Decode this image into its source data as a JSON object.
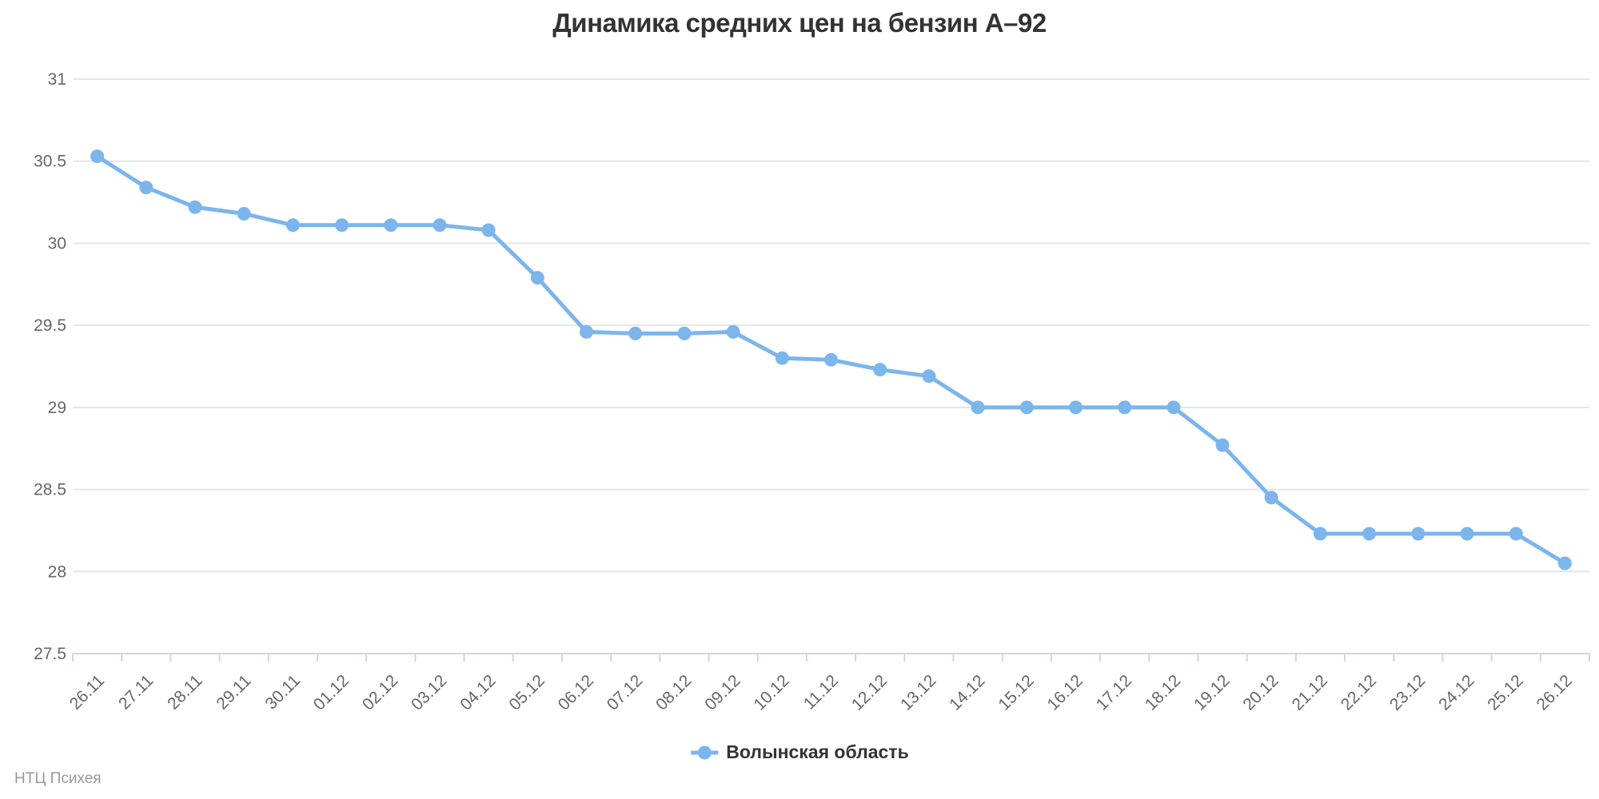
{
  "chart_data": {
    "type": "line",
    "title": "Динамика средних цен на бензин А–92",
    "categories": [
      "26.11",
      "27.11",
      "28.11",
      "29.11",
      "30.11",
      "01.12",
      "02.12",
      "03.12",
      "04.12",
      "05.12",
      "06.12",
      "07.12",
      "08.12",
      "09.12",
      "10.12",
      "11.12",
      "12.12",
      "13.12",
      "14.12",
      "15.12",
      "16.12",
      "17.12",
      "18.12",
      "19.12",
      "20.12",
      "21.12",
      "22.12",
      "23.12",
      "24.12",
      "25.12",
      "26.12"
    ],
    "series": [
      {
        "name": "Волынская область",
        "values": [
          30.53,
          30.34,
          30.22,
          30.18,
          30.11,
          30.11,
          30.11,
          30.11,
          30.08,
          29.79,
          29.46,
          29.45,
          29.45,
          29.46,
          29.3,
          29.29,
          29.23,
          29.19,
          29.0,
          29.0,
          29.0,
          29.0,
          29.0,
          28.77,
          28.45,
          28.23,
          28.23,
          28.23,
          28.23,
          28.23,
          28.05
        ]
      }
    ],
    "xlabel": "",
    "ylabel": "",
    "ylim": [
      27.5,
      31
    ],
    "yticks": [
      27.5,
      28,
      28.5,
      29,
      29.5,
      30,
      30.5,
      31
    ],
    "grid": true,
    "legend_position": "bottom-center",
    "credits": "НТЦ Психея",
    "colors": {
      "series": "#7cb5ec",
      "grid": "#e6e6e6",
      "axis": "#ccd6eb",
      "tick_label": "#666666",
      "title": "#333333",
      "legend_text": "#333333",
      "credits": "#999999"
    }
  }
}
